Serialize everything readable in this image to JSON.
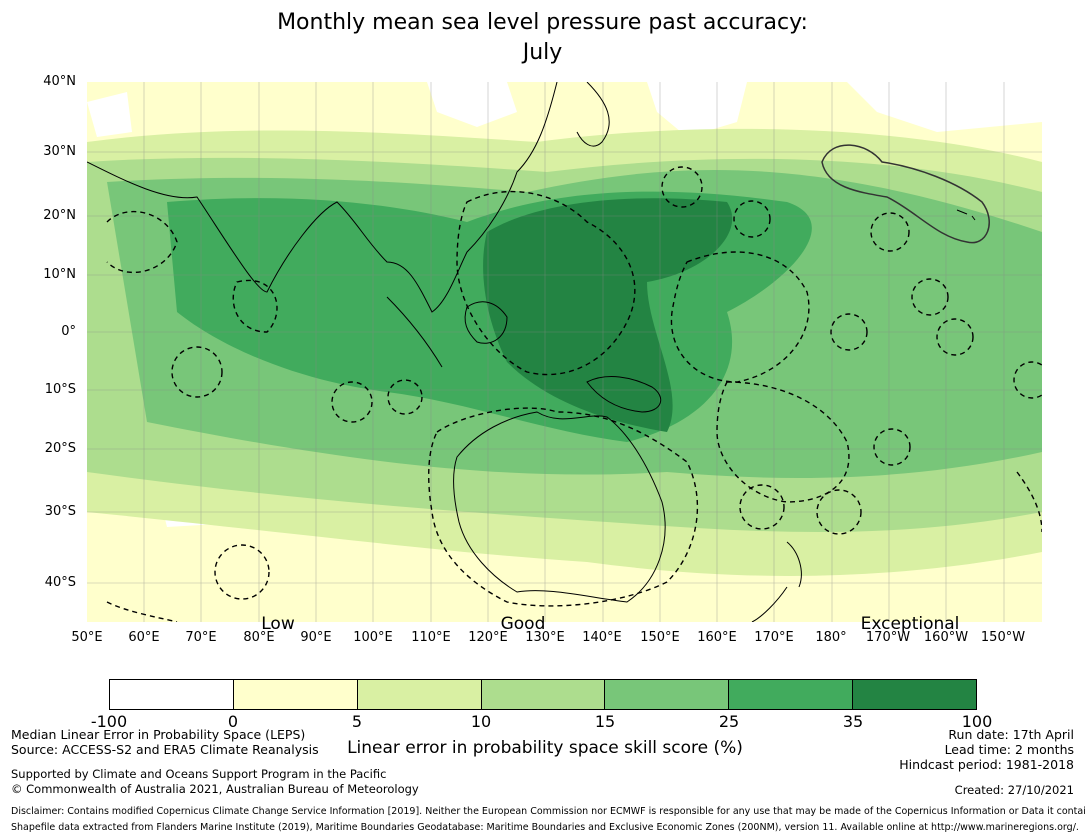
{
  "title": {
    "line1": "Monthly mean sea level pressure past accuracy:",
    "line2": "July"
  },
  "map": {
    "lat_labels": [
      "40°N",
      "30°N",
      "20°N",
      "10°N",
      "0°",
      "10°S",
      "20°S",
      "30°S",
      "40°S"
    ],
    "lon_labels": [
      "50°E",
      "60°E",
      "70°E",
      "80°E",
      "90°E",
      "100°E",
      "110°E",
      "120°E",
      "130°E",
      "140°E",
      "150°E",
      "160°E",
      "170°E",
      "180°",
      "170°W",
      "160°W",
      "150°W"
    ],
    "skill_labels": [
      "Low",
      "Good",
      "Exceptional"
    ],
    "colors": {
      "land_outline": "#000000",
      "eez_outline": "#000000"
    }
  },
  "colorbar": {
    "ticks": [
      "-100",
      "0",
      "5",
      "10",
      "15",
      "25",
      "35",
      "100"
    ],
    "colors": [
      "#ffffff",
      "#ffffcc",
      "#d9f0a3",
      "#addd8e",
      "#78c679",
      "#41ab5d",
      "#238443"
    ],
    "label": "Linear error in probability space skill score (%)"
  },
  "footer": {
    "left1": "Median Linear Error in Probability Space (LEPS)",
    "left2": "Source: ACCESS-S2 and ERA5 Climate Reanalysis",
    "left3": "Supported by Climate and Oceans Support Program in the Pacific",
    "left4": "© Commonwealth of Australia 2021, Australian Bureau of Meteorology",
    "right1": "Run date: 17th April",
    "right2": "Lead time: 2 months",
    "right3": "Hindcast period: 1981-2018",
    "right4": "Created: 27/10/2021",
    "disclaimer1": "Disclaimer: Contains modified Copernicus Climate Change Service Information [2019]. Neither the European Commission nor ECMWF is responsible for any use that may be made of the Copernicus Information or Data it contains.",
    "disclaimer2": "Shapefile data extracted from Flanders Marine Institute (2019), Maritime Boundaries Geodatabase: Maritime Boundaries and Exclusive Economic Zones (200NM), version 11. Available online at http://www.marineregions.org/."
  }
}
